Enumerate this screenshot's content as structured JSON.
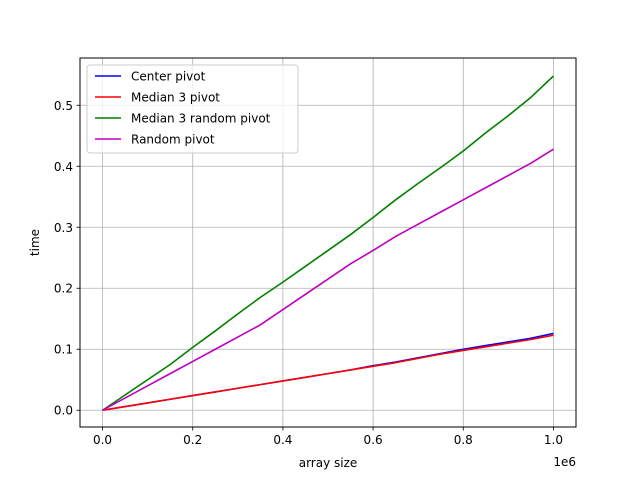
{
  "chart_data": {
    "type": "line",
    "xlabel": "array size",
    "ylabel": "time",
    "x_offset_label": "1e6",
    "xlim": [
      -50000,
      1050000
    ],
    "ylim": [
      -0.0275,
      0.5775
    ],
    "x_ticks": [
      0,
      200000,
      400000,
      600000,
      800000,
      1000000
    ],
    "x_tick_labels": [
      "0.0",
      "0.2",
      "0.4",
      "0.6",
      "0.8",
      "1.0"
    ],
    "y_ticks": [
      0,
      0.1,
      0.2,
      0.3,
      0.4,
      0.5
    ],
    "y_tick_labels": [
      "0.0",
      "0.1",
      "0.2",
      "0.3",
      "0.4",
      "0.5"
    ],
    "grid": true,
    "legend_position": "upper-left",
    "x": [
      0,
      50000,
      100000,
      150000,
      200000,
      250000,
      300000,
      350000,
      400000,
      450000,
      500000,
      550000,
      600000,
      650000,
      700000,
      750000,
      800000,
      850000,
      900000,
      950000,
      1000000
    ],
    "series": [
      {
        "name": "Center pivot",
        "color": "#0000ff",
        "values": [
          0,
          0.006,
          0.012,
          0.018,
          0.024,
          0.03,
          0.036,
          0.042,
          0.048,
          0.054,
          0.06,
          0.066,
          0.073,
          0.079,
          0.086,
          0.093,
          0.1,
          0.106,
          0.112,
          0.118,
          0.126
        ]
      },
      {
        "name": "Median 3 pivot",
        "color": "#ff0000",
        "values": [
          0,
          0.006,
          0.012,
          0.018,
          0.024,
          0.03,
          0.036,
          0.042,
          0.048,
          0.054,
          0.06,
          0.066,
          0.072,
          0.078,
          0.085,
          0.092,
          0.098,
          0.104,
          0.11,
          0.116,
          0.123
        ]
      },
      {
        "name": "Median 3 random pivot",
        "color": "#008000",
        "values": [
          0,
          0.025,
          0.05,
          0.075,
          0.103,
          0.13,
          0.158,
          0.185,
          0.21,
          0.236,
          0.262,
          0.288,
          0.316,
          0.345,
          0.372,
          0.398,
          0.425,
          0.455,
          0.483,
          0.513,
          0.548
        ]
      },
      {
        "name": "Random pivot",
        "color": "#bf00bf",
        "values": [
          0,
          0.02,
          0.04,
          0.06,
          0.08,
          0.1,
          0.12,
          0.14,
          0.165,
          0.19,
          0.215,
          0.24,
          0.262,
          0.285,
          0.305,
          0.325,
          0.345,
          0.365,
          0.385,
          0.405,
          0.428
        ]
      }
    ]
  }
}
